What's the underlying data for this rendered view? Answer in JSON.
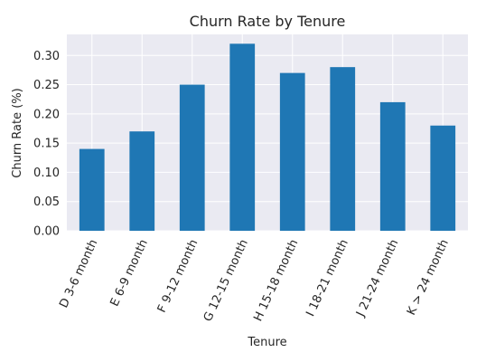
{
  "chart_data": {
    "type": "bar",
    "title": "Churn Rate by Tenure",
    "xlabel": "Tenure",
    "ylabel": "Churn Rate (%)",
    "categories": [
      "D 3-6 month",
      "E 6-9 month",
      "F 9-12 month",
      "G 12-15 month",
      "H 15-18 month",
      "I 18-21 month",
      "J 21-24 month",
      "K > 24 month"
    ],
    "values": [
      0.14,
      0.17,
      0.25,
      0.32,
      0.27,
      0.28,
      0.22,
      0.18
    ],
    "ylim": [
      0,
      0.336
    ],
    "yticks": [
      "0.00",
      "0.05",
      "0.10",
      "0.15",
      "0.20",
      "0.25",
      "0.30"
    ],
    "grid": true,
    "bar_color": "#1f77b4",
    "background_color": "#eaeaf2",
    "grid_color": "#ffffff"
  }
}
